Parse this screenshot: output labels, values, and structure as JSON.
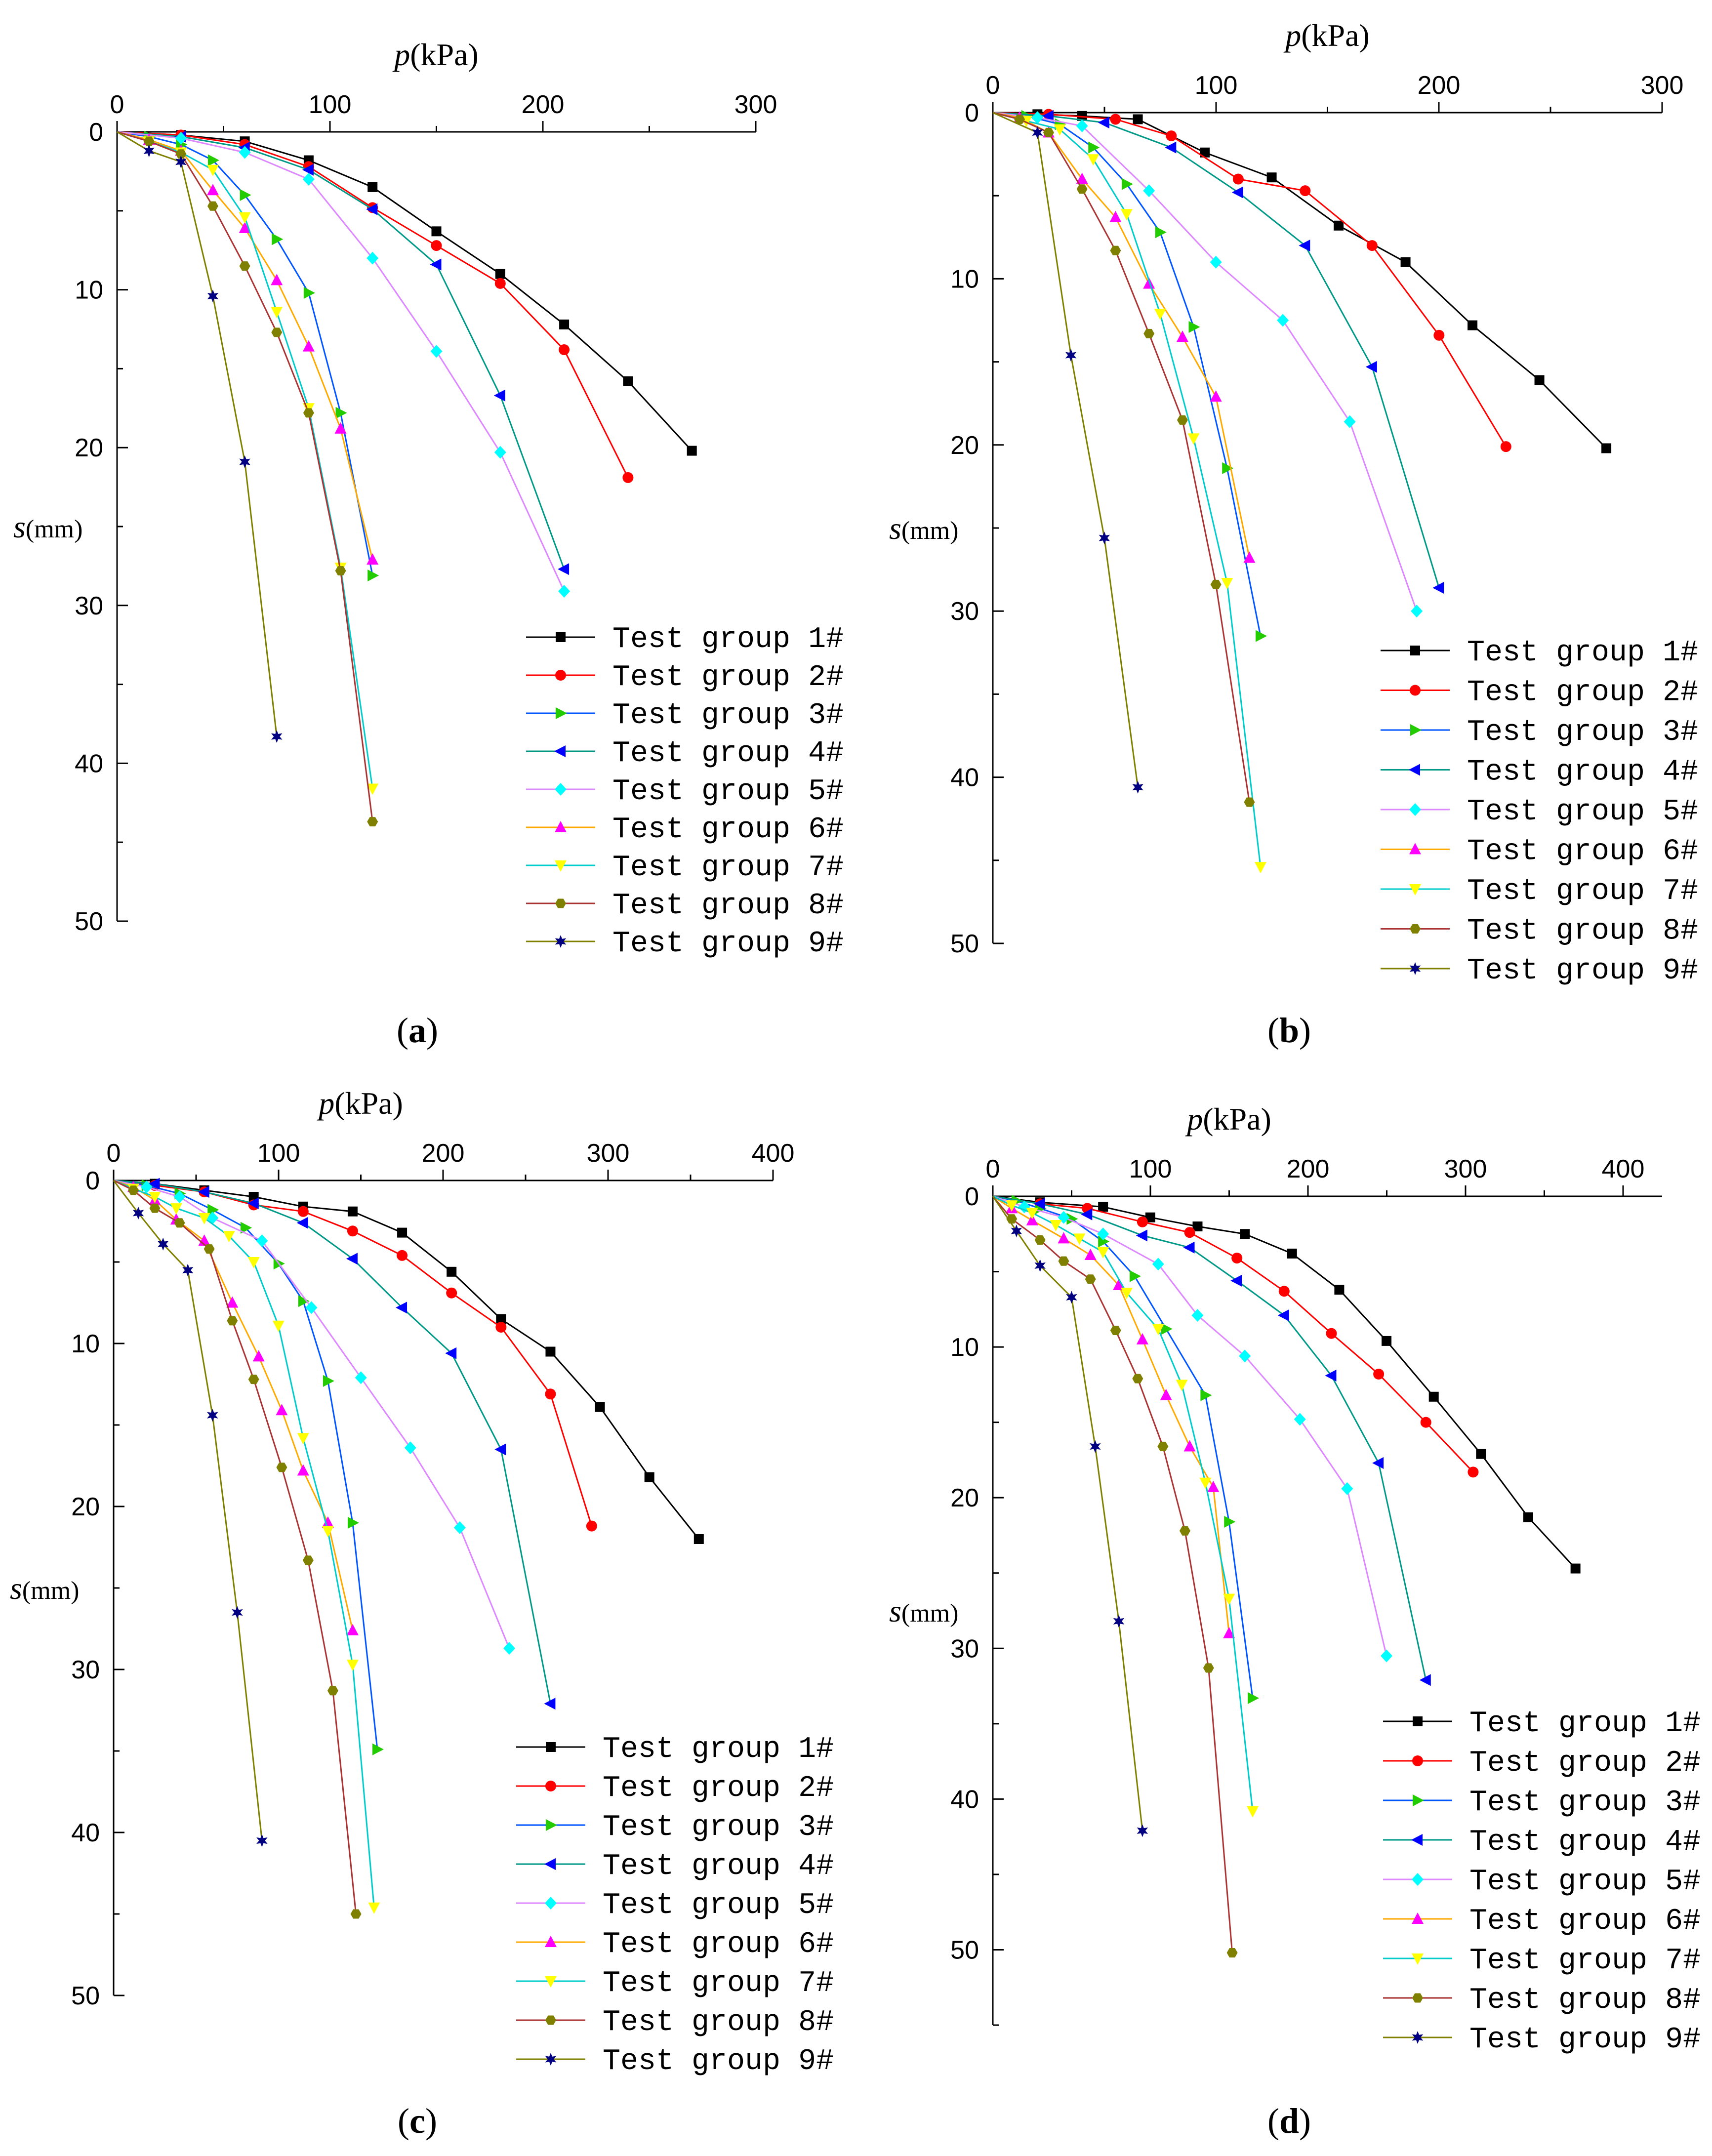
{
  "colors": [
    "#000000",
    "#ff0000",
    "#00cc00",
    "#0000ff",
    "#00ffff",
    "#ff00ff",
    "#ffff00",
    "#00c8c8",
    "#808000",
    "#000080"
  ],
  "series_styles": [
    {
      "line": "#000000",
      "marker": "square",
      "fill": "#000000"
    },
    {
      "line": "#ff0000",
      "marker": "circle",
      "fill": "#ff0000"
    },
    {
      "line": "#0055ff",
      "marker": "tri-right",
      "fill": "#22cc00"
    },
    {
      "line": "#009988",
      "marker": "tri-left",
      "fill": "#0000ff"
    },
    {
      "line": "#dd88ff",
      "marker": "diamond",
      "fill": "#00ffff"
    },
    {
      "line": "#ffaa00",
      "marker": "tri-up",
      "fill": "#ff00ff"
    },
    {
      "line": "#00cccc",
      "marker": "tri-down",
      "fill": "#ffff00"
    },
    {
      "line": "#aa3333",
      "marker": "hexagon",
      "fill": "#808000"
    },
    {
      "line": "#808000",
      "marker": "star",
      "fill": "#000080"
    }
  ],
  "chart_data": [
    {
      "type": "line",
      "panel": "a",
      "caption_letter": "a",
      "xlabel_symbol": "p",
      "xlabel_unit": "(kPa)",
      "ylabel_symbol": "s",
      "ylabel_unit": "(mm)",
      "xlim": [
        0,
        300
      ],
      "ylim": [
        0,
        50
      ],
      "xticks": [
        "0",
        "100",
        "200",
        "300"
      ],
      "yticks": [
        "0",
        "10",
        "20",
        "30",
        "40",
        "50"
      ],
      "series": [
        {
          "name": "Test group 1#",
          "x": [
            0,
            30,
            60,
            90,
            120,
            150,
            180,
            210,
            240,
            270
          ],
          "y": [
            0,
            0.2,
            0.6,
            1.8,
            3.5,
            6.3,
            9.0,
            12.2,
            15.8,
            20.2
          ]
        },
        {
          "name": "Test group 2#",
          "x": [
            0,
            30,
            60,
            90,
            120,
            150,
            180,
            210,
            240
          ],
          "y": [
            0,
            0.2,
            0.8,
            2.2,
            4.8,
            7.2,
            9.6,
            13.8,
            21.9
          ]
        },
        {
          "name": "Test group 3#",
          "x": [
            0,
            15,
            30,
            45,
            60,
            75,
            90,
            105,
            120
          ],
          "y": [
            0,
            0.3,
            0.8,
            1.8,
            4.0,
            6.8,
            10.2,
            17.8,
            28.1
          ]
        },
        {
          "name": "Test group 4#",
          "x": [
            0,
            30,
            60,
            90,
            120,
            150,
            180,
            210
          ],
          "y": [
            0,
            0.3,
            1.0,
            2.4,
            4.9,
            8.4,
            16.7,
            27.7
          ]
        },
        {
          "name": "Test group 5#",
          "x": [
            0,
            30,
            60,
            90,
            120,
            150,
            180,
            210
          ],
          "y": [
            0,
            0.4,
            1.3,
            3.0,
            8.0,
            13.9,
            20.3,
            29.1
          ]
        },
        {
          "name": "Test group 6#",
          "x": [
            0,
            15,
            30,
            45,
            60,
            75,
            90,
            105,
            120
          ],
          "y": [
            0,
            0.5,
            1.2,
            3.7,
            6.1,
            9.4,
            13.6,
            18.8,
            27.1
          ]
        },
        {
          "name": "Test group 7#",
          "x": [
            0,
            15,
            30,
            45,
            60,
            75,
            90,
            105,
            120
          ],
          "y": [
            0,
            0.6,
            1.3,
            2.4,
            5.4,
            11.4,
            17.5,
            27.6,
            41.6
          ]
        },
        {
          "name": "Test group 8#",
          "x": [
            0,
            15,
            30,
            45,
            60,
            75,
            90,
            105,
            120
          ],
          "y": [
            0,
            0.6,
            1.4,
            4.7,
            8.5,
            12.7,
            17.8,
            27.8,
            43.7
          ]
        },
        {
          "name": "Test group 9#",
          "x": [
            0,
            15,
            30,
            45,
            60,
            75
          ],
          "y": [
            0,
            1.2,
            1.9,
            10.4,
            20.9,
            38.3
          ]
        }
      ]
    },
    {
      "type": "line",
      "panel": "b",
      "caption_letter": "b",
      "xlabel_symbol": "p",
      "xlabel_unit": "(kPa)",
      "ylabel_symbol": "s",
      "ylabel_unit": "(mm)",
      "xlim": [
        0,
        300
      ],
      "ylim": [
        0,
        50
      ],
      "xticks": [
        "0",
        "100",
        "200",
        "300"
      ],
      "yticks": [
        "0",
        "10",
        "20",
        "30",
        "40",
        "50"
      ],
      "series": [
        {
          "name": "Test group 1#",
          "x": [
            0,
            20,
            40,
            65,
            95,
            125,
            155,
            185,
            215,
            245,
            275
          ],
          "y": [
            0,
            0.1,
            0.2,
            0.4,
            2.4,
            3.9,
            6.8,
            9.0,
            12.8,
            16.1,
            20.2
          ]
        },
        {
          "name": "Test group 2#",
          "x": [
            0,
            25,
            55,
            80,
            110,
            140,
            170,
            200,
            230
          ],
          "y": [
            0,
            0.1,
            0.4,
            1.4,
            4.0,
            4.7,
            8.0,
            13.4,
            20.1
          ]
        },
        {
          "name": "Test group 3#",
          "x": [
            0,
            15,
            30,
            45,
            60,
            75,
            90,
            105,
            120
          ],
          "y": [
            0,
            0.2,
            0.7,
            2.1,
            4.3,
            7.2,
            12.9,
            21.4,
            31.5
          ]
        },
        {
          "name": "Test group 4#",
          "x": [
            0,
            25,
            50,
            80,
            110,
            140,
            170,
            200
          ],
          "y": [
            0,
            0.2,
            0.6,
            2.1,
            4.8,
            8.0,
            15.3,
            28.6
          ]
        },
        {
          "name": "Test group 5#",
          "x": [
            0,
            20,
            40,
            70,
            100,
            130,
            160,
            190
          ],
          "y": [
            0,
            0.3,
            0.8,
            4.7,
            9.0,
            12.5,
            18.6,
            30.0
          ]
        },
        {
          "name": "Test group 6#",
          "x": [
            0,
            12,
            25,
            40,
            55,
            70,
            85,
            100,
            115
          ],
          "y": [
            0,
            0.3,
            1.2,
            4.0,
            6.3,
            10.3,
            13.5,
            17.1,
            26.8
          ]
        },
        {
          "name": "Test group 7#",
          "x": [
            0,
            15,
            30,
            45,
            60,
            75,
            90,
            105,
            120
          ],
          "y": [
            0,
            0.5,
            1.0,
            2.8,
            6.1,
            12.1,
            19.6,
            28.3,
            45.4
          ]
        },
        {
          "name": "Test group 8#",
          "x": [
            0,
            12,
            25,
            40,
            55,
            70,
            85,
            100,
            115
          ],
          "y": [
            0,
            0.4,
            1.2,
            4.6,
            8.3,
            13.3,
            18.5,
            28.4,
            41.5
          ]
        },
        {
          "name": "Test group 9#",
          "x": [
            0,
            20,
            35,
            50,
            65
          ],
          "y": [
            0,
            1.2,
            14.6,
            25.6,
            40.6
          ]
        }
      ]
    },
    {
      "type": "line",
      "panel": "c",
      "caption_letter": "c",
      "xlabel_symbol": "p",
      "xlabel_unit": "(kPa)",
      "ylabel_symbol": "s",
      "ylabel_unit": "(mm)",
      "xlim": [
        0,
        400
      ],
      "ylim": [
        0,
        50
      ],
      "xticks": [
        "0",
        "100",
        "200",
        "300",
        "400"
      ],
      "yticks": [
        "0",
        "10",
        "20",
        "30",
        "40",
        "50"
      ],
      "series": [
        {
          "name": "Test group 1#",
          "x": [
            0,
            25,
            55,
            85,
            115,
            145,
            175,
            205,
            235,
            265,
            295,
            325,
            355
          ],
          "y": [
            0,
            0.2,
            0.6,
            1.0,
            1.6,
            1.9,
            3.2,
            5.6,
            8.5,
            10.5,
            13.9,
            18.2,
            22.0
          ]
        },
        {
          "name": "Test group 2#",
          "x": [
            0,
            25,
            55,
            85,
            115,
            145,
            175,
            205,
            235,
            265,
            290
          ],
          "y": [
            0,
            0.3,
            0.7,
            1.5,
            1.9,
            3.1,
            4.6,
            6.9,
            9.0,
            13.1,
            21.2
          ]
        },
        {
          "name": "Test group 3#",
          "x": [
            0,
            20,
            40,
            60,
            80,
            100,
            115,
            130,
            145,
            160
          ],
          "y": [
            0,
            0.3,
            0.8,
            1.8,
            2.9,
            5.1,
            7.4,
            12.3,
            21.0,
            34.9
          ]
        },
        {
          "name": "Test group 4#",
          "x": [
            0,
            25,
            55,
            85,
            115,
            145,
            175,
            205,
            235,
            265
          ],
          "y": [
            0,
            0.2,
            0.7,
            1.4,
            2.6,
            4.8,
            7.8,
            10.6,
            16.5,
            32.1
          ]
        },
        {
          "name": "Test group 5#",
          "x": [
            0,
            20,
            40,
            60,
            90,
            120,
            150,
            180,
            210,
            240
          ],
          "y": [
            0,
            0.4,
            1.0,
            2.3,
            3.7,
            7.8,
            12.1,
            16.4,
            21.3,
            28.7
          ]
        },
        {
          "name": "Test group 6#",
          "x": [
            0,
            12,
            25,
            38,
            55,
            72,
            88,
            102,
            115,
            130,
            145
          ],
          "y": [
            0,
            0.4,
            1.2,
            2.4,
            3.7,
            7.5,
            10.8,
            14.1,
            17.8,
            21.0,
            27.6
          ]
        },
        {
          "name": "Test group 7#",
          "x": [
            0,
            12,
            25,
            38,
            55,
            70,
            85,
            100,
            115,
            130,
            145,
            158
          ],
          "y": [
            0,
            0.5,
            1.0,
            1.7,
            2.3,
            3.4,
            5.0,
            8.9,
            15.8,
            21.5,
            29.7,
            44.6
          ]
        },
        {
          "name": "Test group 8#",
          "x": [
            0,
            12,
            25,
            40,
            58,
            72,
            85,
            102,
            118,
            133,
            147
          ],
          "y": [
            0,
            0.6,
            1.7,
            2.6,
            4.2,
            8.6,
            12.2,
            17.6,
            23.3,
            31.3,
            45.0
          ]
        },
        {
          "name": "Test group 9#",
          "x": [
            0,
            15,
            30,
            45,
            60,
            75,
            90
          ],
          "y": [
            0,
            2.0,
            3.9,
            5.5,
            14.4,
            26.5,
            40.5
          ]
        }
      ]
    },
    {
      "type": "line",
      "panel": "d",
      "caption_letter": "d",
      "xlabel_symbol": "p",
      "xlabel_unit": "(kPa)",
      "ylabel_symbol": "s",
      "ylabel_unit": "(mm)",
      "xlim": [
        0,
        425
      ],
      "ylim": [
        0,
        55
      ],
      "xticks": [
        "0",
        "100",
        "200",
        "300",
        "400"
      ],
      "yticks": [
        "0",
        "10",
        "20",
        "30",
        "40",
        "50"
      ],
      "series": [
        {
          "name": "Test group 1#",
          "x": [
            0,
            30,
            70,
            100,
            130,
            160,
            190,
            220,
            250,
            280,
            310,
            340,
            370
          ],
          "y": [
            0,
            0.4,
            0.7,
            1.4,
            2.0,
            2.5,
            3.8,
            6.2,
            9.6,
            13.3,
            17.1,
            21.3,
            24.7
          ]
        },
        {
          "name": "Test group 2#",
          "x": [
            0,
            30,
            60,
            95,
            125,
            155,
            185,
            215,
            245,
            275,
            305
          ],
          "y": [
            0,
            0.5,
            0.8,
            1.7,
            2.4,
            4.1,
            6.3,
            9.1,
            11.8,
            15.0,
            18.3
          ]
        },
        {
          "name": "Test group 3#",
          "x": [
            0,
            15,
            30,
            50,
            70,
            90,
            110,
            135,
            150,
            165
          ],
          "y": [
            0,
            0.3,
            0.8,
            1.5,
            3.0,
            5.3,
            8.8,
            13.2,
            21.6,
            33.3
          ]
        },
        {
          "name": "Test group 4#",
          "x": [
            0,
            30,
            60,
            95,
            125,
            155,
            185,
            215,
            245,
            275
          ],
          "y": [
            0,
            0.5,
            1.2,
            2.6,
            3.4,
            5.6,
            7.9,
            11.9,
            17.7,
            32.1
          ]
        },
        {
          "name": "Test group 5#",
          "x": [
            0,
            20,
            45,
            70,
            105,
            130,
            160,
            195,
            225,
            250
          ],
          "y": [
            0,
            0.7,
            1.4,
            2.5,
            4.5,
            7.9,
            10.6,
            14.8,
            19.4,
            30.5
          ]
        },
        {
          "name": "Test group 6#",
          "x": [
            0,
            12,
            25,
            45,
            62,
            80,
            95,
            110,
            125,
            140,
            150
          ],
          "y": [
            0,
            0.8,
            1.6,
            2.8,
            3.9,
            5.9,
            9.5,
            13.2,
            16.6,
            19.3,
            29.0
          ]
        },
        {
          "name": "Test group 7#",
          "x": [
            0,
            12,
            25,
            40,
            55,
            70,
            85,
            105,
            120,
            135,
            150,
            165
          ],
          "y": [
            0,
            0.6,
            1.1,
            1.9,
            2.8,
            3.7,
            6.4,
            8.8,
            12.5,
            19.0,
            26.7,
            40.8
          ]
        },
        {
          "name": "Test group 8#",
          "x": [
            0,
            12,
            30,
            45,
            62,
            78,
            92,
            108,
            122,
            137,
            152
          ],
          "y": [
            0,
            1.5,
            2.9,
            4.3,
            5.5,
            8.9,
            12.1,
            16.6,
            22.2,
            31.3,
            50.2
          ]
        },
        {
          "name": "Test group 9#",
          "x": [
            0,
            15,
            30,
            50,
            65,
            80,
            95
          ],
          "y": [
            0,
            2.3,
            4.6,
            6.7,
            16.6,
            28.2,
            42.1
          ]
        }
      ]
    }
  ]
}
